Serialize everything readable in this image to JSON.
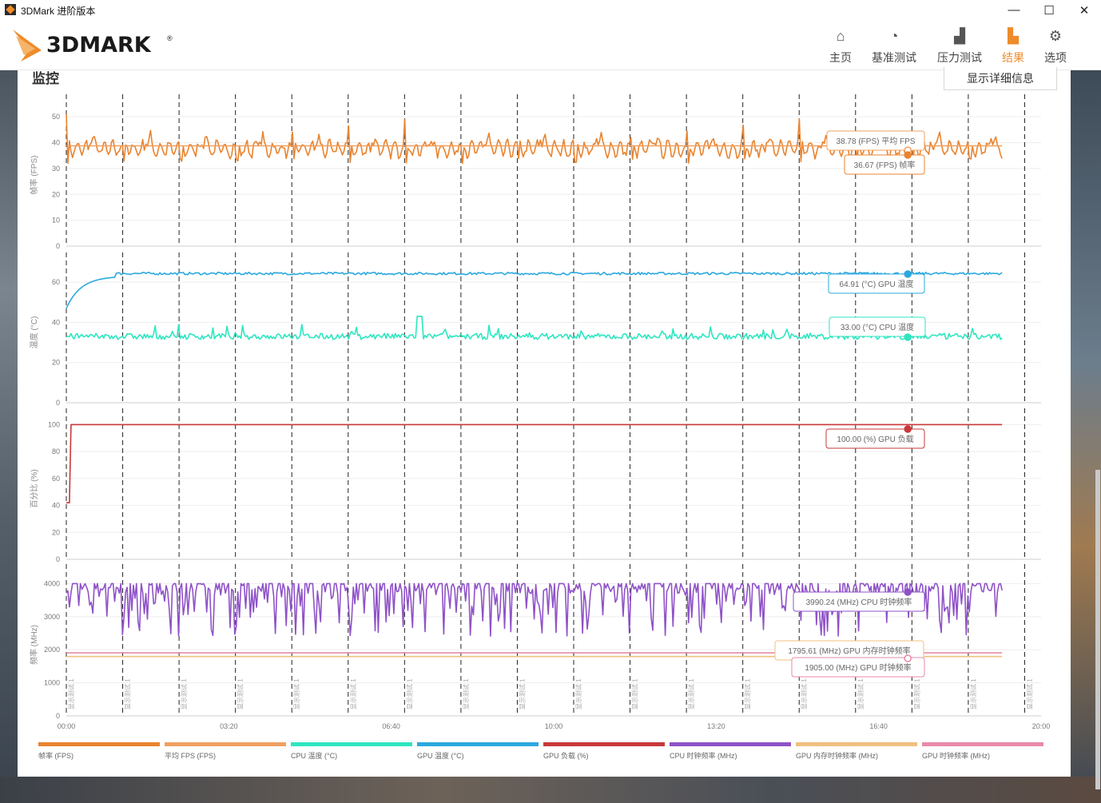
{
  "window": {
    "title": "3DMark 进阶版本",
    "minimize": "—",
    "maximize": "☐",
    "close": "✕"
  },
  "logo": {
    "text": "3DMARK",
    "reg": "®"
  },
  "nav": [
    {
      "label": "主页",
      "icon": "home-icon",
      "glyph": "⌂",
      "active": false
    },
    {
      "label": "基准测试",
      "icon": "gauge-icon",
      "glyph": "◔",
      "active": false
    },
    {
      "label": "压力测试",
      "icon": "bars-icon",
      "glyph": "▟",
      "active": false
    },
    {
      "label": "结果",
      "icon": "results-icon",
      "glyph": "▙",
      "active": true
    },
    {
      "label": "选项",
      "icon": "gear-icon",
      "glyph": "⚙",
      "active": false
    }
  ],
  "section": {
    "title": "监控",
    "details_button": "显示详细信息"
  },
  "colors": {
    "fps": "#e88430",
    "avg_fps": "#f0a060",
    "cpu_temp": "#2ee6c0",
    "gpu_temp": "#2ba8de",
    "gpu_load": "#c8383b",
    "cpu_clock": "#8f52c8",
    "gpu_mem_clock": "#f0c080",
    "gpu_clock": "#e88aa8"
  },
  "chart_data": [
    {
      "type": "line",
      "ylabel": "帧率 (FPS)",
      "ylim": [
        0,
        55
      ],
      "yticks": [
        0,
        10,
        20,
        30,
        40,
        50
      ],
      "series": [
        {
          "name": "帧率 (FPS)",
          "pattern": "periodic_spikes",
          "period_s": 69.4,
          "min": 32,
          "max": 51,
          "baseline": 38
        },
        {
          "name": "平均 FPS (FPS)",
          "constant": 38.78
        }
      ],
      "tooltips": [
        "38.78 (FPS) 平均 FPS",
        "36.67 (FPS) 帧率"
      ]
    },
    {
      "type": "line",
      "ylabel": "温度 (°C)",
      "ylim": [
        0,
        70
      ],
      "yticks": [
        0,
        20,
        40,
        60
      ],
      "series": [
        {
          "name": "GPU 温度 (°C)",
          "start": 47,
          "plateau": 64.5
        },
        {
          "name": "CPU 温度 (°C)",
          "mean": 33,
          "noise_min": 30,
          "noise_max": 43
        }
      ],
      "tooltips": [
        "64.91 (°C) GPU 温度",
        "33.00 (°C) CPU 温度"
      ]
    },
    {
      "type": "line",
      "ylabel": "百分比 (%)",
      "ylim": [
        0,
        105
      ],
      "yticks": [
        0,
        20,
        40,
        60,
        80,
        100
      ],
      "series": [
        {
          "name": "GPU 负载 (%)",
          "start": 42,
          "plateau": 100
        }
      ],
      "tooltips": [
        "100.00 (%) GPU 负载"
      ]
    },
    {
      "type": "line",
      "ylabel": "频率 (MHz)",
      "ylim": [
        0,
        4300
      ],
      "yticks": [
        0,
        1000,
        2000,
        3000,
        4000
      ],
      "series": [
        {
          "name": "CPU 时钟频率 (MHz)",
          "min": 2400,
          "max": 4000
        },
        {
          "name": "GPU 内存时钟频率 (MHz)",
          "constant": 1795.61
        },
        {
          "name": "GPU 时钟频率 (MHz)",
          "constant": 1905.0
        }
      ],
      "tooltips": [
        "3990.24 (MHz) CPU 时钟频率",
        "1795.61 (MHz) GPU 内存时钟频率",
        "1905.00 (MHz) GPU 时钟频率"
      ]
    }
  ],
  "x_axis": {
    "ticks": [
      "00:00",
      "03:20",
      "06:40",
      "10:00",
      "13:20",
      "16:40",
      "20:00"
    ],
    "max_seconds": 1200,
    "data_end_seconds": 1152
  },
  "loop_marker_label": "显示测试 1",
  "loop_marker_count": 19,
  "legend": [
    {
      "label": "帧率 (FPS)",
      "color_key": "fps"
    },
    {
      "label": "平均 FPS (FPS)",
      "color_key": "avg_fps"
    },
    {
      "label": "CPU 温度 (°C)",
      "color_key": "cpu_temp"
    },
    {
      "label": "GPU 温度 (°C)",
      "color_key": "gpu_temp"
    },
    {
      "label": "GPU 负载 (%)",
      "color_key": "gpu_load"
    },
    {
      "label": "CPU 时钟频率 (MHz)",
      "color_key": "cpu_clock"
    },
    {
      "label": "GPU 内存时钟频率 (MHz)",
      "color_key": "gpu_mem_clock"
    },
    {
      "label": "GPU 时钟频率 (MHz)",
      "color_key": "gpu_clock"
    }
  ]
}
